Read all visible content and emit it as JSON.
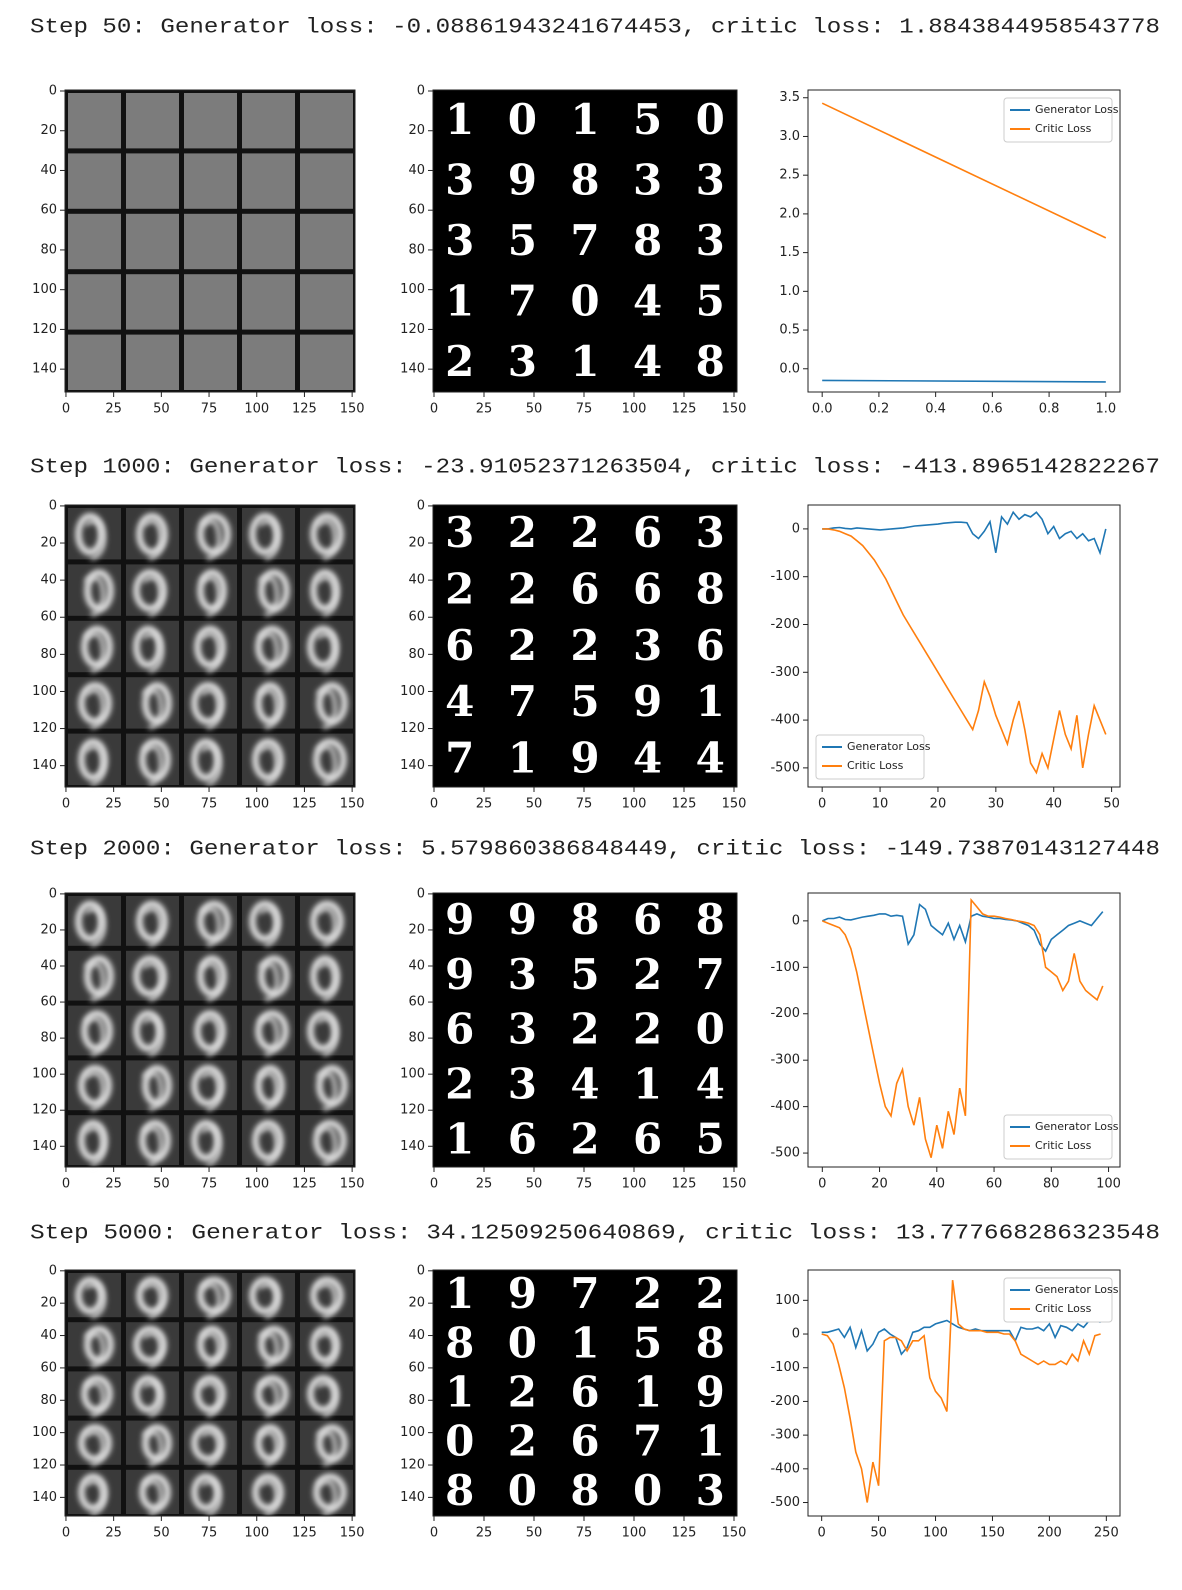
{
  "headings": [
    "Step 50: Generator loss: -0.08861943241674453, critic loss: 1.8843844958543778",
    "Step 1000: Generator loss: -23.91052371263504, critic loss: -413.8965142822267",
    "Step 2000: Generator loss: 5.579860386848449, critic loss: -149.73870143127448",
    "Step 5000: Generator loss: 34.12509250640869, critic loss: 13.777668286323548"
  ],
  "chart_data": [
    {
      "type": "image",
      "xlim": [
        -0.5,
        151.5
      ],
      "ylim": [
        151.5,
        -0.5
      ],
      "xticks": [
        0,
        25,
        50,
        75,
        100,
        125,
        150
      ],
      "yticks": [
        0,
        20,
        40,
        60,
        80,
        100,
        120,
        140
      ]
    },
    {
      "type": "image",
      "digits": [
        "10150",
        "39833",
        "35783",
        "17045",
        "23148"
      ],
      "xlim": [
        -0.5,
        151.5
      ],
      "ylim": [
        151.5,
        -0.5
      ],
      "xticks": [
        0,
        25,
        50,
        75,
        100,
        125,
        150
      ],
      "yticks": [
        0,
        20,
        40,
        60,
        80,
        100,
        120,
        140
      ]
    },
    {
      "type": "line",
      "x": [
        0,
        1
      ],
      "series": [
        {
          "name": "Generator Loss",
          "color": "#1f77b4",
          "values": [
            -0.15,
            -0.17
          ]
        },
        {
          "name": "Critic Loss",
          "color": "#ff7f0e",
          "values": [
            3.43,
            1.69
          ]
        }
      ],
      "xlim": [
        -0.05,
        1.05
      ],
      "ylim": [
        -0.3,
        3.6
      ],
      "xticks": [
        {
          "value": 0,
          "label": "0.0"
        },
        {
          "value": 0.2,
          "label": "0.2"
        },
        {
          "value": 0.4,
          "label": "0.4"
        },
        {
          "value": 0.6,
          "label": "0.6"
        },
        {
          "value": 0.8,
          "label": "0.8"
        },
        {
          "value": 1,
          "label": "1.0"
        }
      ],
      "yticks": [
        {
          "value": 0,
          "label": "0.0"
        },
        {
          "value": 0.5,
          "label": "0.5"
        },
        {
          "value": 1,
          "label": "1.0"
        },
        {
          "value": 1.5,
          "label": "1.5"
        },
        {
          "value": 2,
          "label": "2.0"
        },
        {
          "value": 2.5,
          "label": "2.5"
        },
        {
          "value": 3,
          "label": "3.0"
        },
        {
          "value": 3.5,
          "label": "3.5"
        }
      ],
      "legend": "upper right"
    },
    {
      "type": "image",
      "xlim": [
        -0.5,
        151.5
      ],
      "ylim": [
        151.5,
        -0.5
      ],
      "xticks": [
        0,
        25,
        50,
        75,
        100,
        125,
        150
      ],
      "yticks": [
        0,
        20,
        40,
        60,
        80,
        100,
        120,
        140
      ]
    },
    {
      "type": "image",
      "digits": [
        "32263",
        "22668",
        "62236",
        "47591",
        "71944"
      ],
      "xlim": [
        -0.5,
        151.5
      ],
      "ylim": [
        151.5,
        -0.5
      ],
      "xticks": [
        0,
        25,
        50,
        75,
        100,
        125,
        150
      ],
      "yticks": [
        0,
        20,
        40,
        60,
        80,
        100,
        120,
        140
      ]
    },
    {
      "type": "line",
      "x": [
        0,
        1,
        2,
        3,
        4,
        5,
        6,
        7,
        8,
        9,
        10,
        11,
        12,
        13,
        14,
        15,
        16,
        17,
        18,
        19,
        20,
        21,
        22,
        23,
        24,
        25,
        26,
        27,
        28,
        29,
        30,
        31,
        32,
        33,
        34,
        35,
        36,
        37,
        38,
        39,
        40,
        41,
        42,
        43,
        44,
        45,
        46,
        47,
        48,
        49
      ],
      "series": [
        {
          "name": "Generator Loss",
          "color": "#1f77b4",
          "values": [
            0,
            0,
            2,
            3,
            1,
            0,
            2,
            1,
            0,
            -1,
            -2,
            -1,
            0,
            1,
            2,
            4,
            6,
            7,
            8,
            9,
            10,
            12,
            13,
            14,
            14,
            13,
            -10,
            -20,
            -5,
            15,
            -50,
            25,
            10,
            35,
            20,
            30,
            25,
            35,
            20,
            -10,
            5,
            -20,
            -10,
            -5,
            -20,
            -10,
            -25,
            -20,
            -50,
            0
          ]
        },
        {
          "name": "Critic Loss",
          "color": "#ff7f0e",
          "values": [
            0,
            0,
            -2,
            -5,
            -10,
            -15,
            -25,
            -35,
            -50,
            -65,
            -85,
            -105,
            -130,
            -155,
            -180,
            -200,
            -220,
            -240,
            -260,
            -280,
            -300,
            -320,
            -340,
            -360,
            -380,
            -400,
            -420,
            -380,
            -320,
            -350,
            -390,
            -420,
            -450,
            -400,
            -360,
            -420,
            -490,
            -510,
            -470,
            -500,
            -440,
            -380,
            -430,
            -460,
            -390,
            -500,
            -430,
            -370,
            -400,
            -430
          ]
        }
      ],
      "xlim": [
        -2.45,
        51.45
      ],
      "ylim": [
        -540,
        50
      ],
      "xticks": [
        0,
        10,
        20,
        30,
        40,
        50
      ],
      "yticks": [
        0,
        -100,
        -200,
        -300,
        -400,
        -500
      ],
      "legend": "lower left"
    },
    {
      "type": "image",
      "xlim": [
        -0.5,
        151.5
      ],
      "ylim": [
        151.5,
        -0.5
      ],
      "xticks": [
        0,
        25,
        50,
        75,
        100,
        125,
        150
      ],
      "yticks": [
        0,
        20,
        40,
        60,
        80,
        100,
        120,
        140
      ]
    },
    {
      "type": "image",
      "digits": [
        "99868",
        "93527",
        "63220",
        "23414",
        "16265"
      ],
      "xlim": [
        -0.5,
        151.5
      ],
      "ylim": [
        151.5,
        -0.5
      ],
      "xticks": [
        0,
        25,
        50,
        75,
        100,
        125,
        150
      ],
      "yticks": [
        0,
        20,
        40,
        60,
        80,
        100,
        120,
        140
      ]
    },
    {
      "type": "line",
      "x": [
        0,
        2,
        4,
        6,
        8,
        10,
        12,
        14,
        16,
        18,
        20,
        22,
        24,
        26,
        28,
        30,
        32,
        34,
        36,
        38,
        40,
        42,
        44,
        46,
        48,
        50,
        52,
        54,
        56,
        58,
        60,
        62,
        64,
        66,
        68,
        70,
        72,
        74,
        76,
        78,
        80,
        82,
        84,
        86,
        88,
        90,
        92,
        94,
        96,
        98
      ],
      "series": [
        {
          "name": "Generator Loss",
          "color": "#1f77b4",
          "values": [
            0,
            5,
            5,
            8,
            3,
            2,
            5,
            8,
            10,
            12,
            15,
            15,
            10,
            12,
            10,
            -50,
            -30,
            35,
            25,
            -10,
            -20,
            -30,
            -5,
            -40,
            -10,
            -45,
            10,
            15,
            10,
            8,
            5,
            5,
            3,
            2,
            0,
            -5,
            -10,
            -20,
            -50,
            -65,
            -40,
            -30,
            -20,
            -10,
            -5,
            0,
            -5,
            -10,
            5,
            20
          ]
        },
        {
          "name": "Critic Loss",
          "color": "#ff7f0e",
          "values": [
            0,
            -5,
            -10,
            -15,
            -30,
            -60,
            -110,
            -170,
            -230,
            -290,
            -350,
            -400,
            -420,
            -350,
            -320,
            -400,
            -440,
            -380,
            -470,
            -510,
            -440,
            -490,
            -410,
            -460,
            -360,
            -420,
            45,
            30,
            15,
            10,
            10,
            8,
            5,
            3,
            0,
            -2,
            -5,
            -10,
            -30,
            -100,
            -110,
            -120,
            -150,
            -130,
            -70,
            -130,
            -150,
            -160,
            -170,
            -140
          ]
        }
      ],
      "xlim": [
        -5,
        104
      ],
      "ylim": [
        -530,
        60
      ],
      "xticks": [
        0,
        20,
        40,
        60,
        80,
        100
      ],
      "yticks": [
        0,
        -100,
        -200,
        -300,
        -400,
        -500
      ],
      "legend": "lower right"
    },
    {
      "type": "image",
      "xlim": [
        -0.5,
        151.5
      ],
      "ylim": [
        151.5,
        -0.5
      ],
      "xticks": [
        0,
        25,
        50,
        75,
        100,
        125,
        150
      ],
      "yticks": [
        0,
        20,
        40,
        60,
        80,
        100,
        120,
        140
      ]
    },
    {
      "type": "image",
      "digits": [
        "19722",
        "80158",
        "12619",
        "02671",
        "80803"
      ],
      "xlim": [
        -0.5,
        151.5
      ],
      "ylim": [
        151.5,
        -0.5
      ],
      "xticks": [
        0,
        25,
        50,
        75,
        100,
        125,
        150
      ],
      "yticks": [
        0,
        20,
        40,
        60,
        80,
        100,
        120,
        140
      ]
    },
    {
      "type": "line",
      "x": [
        0,
        5,
        10,
        15,
        20,
        25,
        30,
        35,
        40,
        45,
        50,
        55,
        60,
        65,
        70,
        75,
        80,
        85,
        90,
        95,
        100,
        105,
        110,
        115,
        120,
        125,
        130,
        135,
        140,
        145,
        150,
        155,
        160,
        165,
        170,
        175,
        180,
        185,
        190,
        195,
        200,
        205,
        210,
        215,
        220,
        225,
        230,
        235,
        240,
        245
      ],
      "series": [
        {
          "name": "Generator Loss",
          "color": "#1f77b4",
          "values": [
            5,
            5,
            10,
            15,
            -10,
            20,
            -40,
            10,
            -50,
            -30,
            5,
            15,
            0,
            -10,
            -60,
            -40,
            5,
            10,
            20,
            20,
            30,
            35,
            40,
            30,
            20,
            15,
            10,
            15,
            10,
            10,
            10,
            10,
            10,
            10,
            -20,
            20,
            15,
            15,
            20,
            10,
            30,
            -10,
            25,
            20,
            10,
            30,
            20,
            40,
            40,
            35
          ]
        },
        {
          "name": "Critic Loss",
          "color": "#ff7f0e",
          "values": [
            0,
            -5,
            -30,
            -90,
            -160,
            -250,
            -350,
            -400,
            -500,
            -380,
            -450,
            -20,
            -10,
            -10,
            -20,
            -50,
            -20,
            -20,
            -5,
            -130,
            -170,
            -190,
            -230,
            160,
            30,
            15,
            10,
            10,
            10,
            5,
            5,
            5,
            0,
            0,
            -20,
            -60,
            -70,
            -80,
            -90,
            -80,
            -90,
            -90,
            -80,
            -90,
            -60,
            -80,
            -20,
            -60,
            -5,
            0
          ]
        }
      ],
      "xlim": [
        -12,
        262
      ],
      "ylim": [
        -540,
        190
      ],
      "xticks": [
        0,
        50,
        100,
        150,
        200,
        250
      ],
      "yticks": [
        100,
        0,
        -100,
        -200,
        -300,
        -400,
        -500
      ],
      "legend": "upper right"
    }
  ]
}
